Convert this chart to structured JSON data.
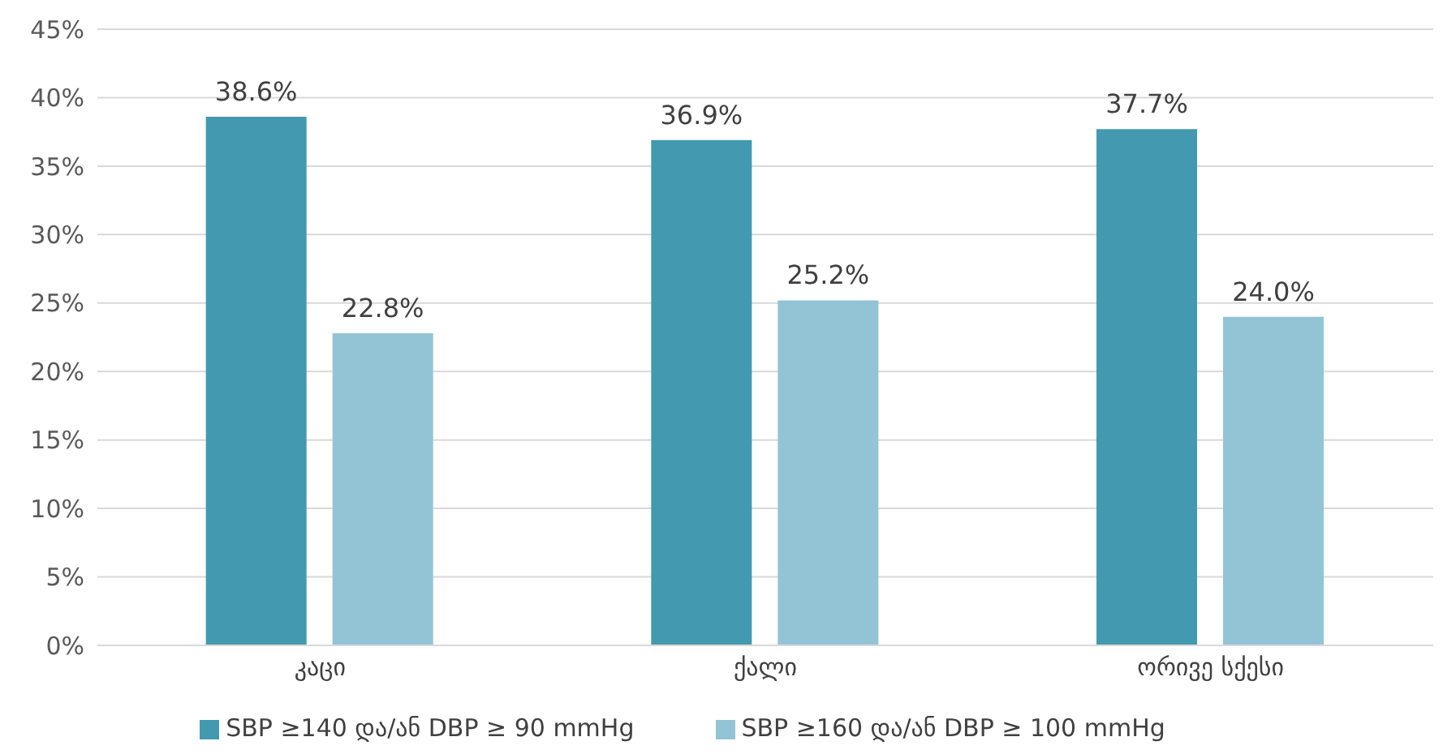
{
  "chart_data": {
    "type": "bar",
    "categories": [
      "კაცი",
      "ქალი",
      "ორივე სქესი"
    ],
    "series": [
      {
        "name": "SBP ≥140 და/ან DBP ≥ 90 mmHg",
        "color": "#4399b0",
        "values": [
          38.6,
          36.9,
          37.7
        ],
        "value_labels": [
          "38.6%",
          "36.9%",
          "37.7%"
        ]
      },
      {
        "name": "SBP ≥160 და/ან DBP ≥ 100 mmHg",
        "color": "#93c4d5",
        "values": [
          22.8,
          25.2,
          24.0
        ],
        "value_labels": [
          "22.8%",
          "25.2%",
          "24.0%"
        ]
      }
    ],
    "ylim": [
      0,
      45
    ],
    "yticks": [
      {
        "value": 0,
        "label": "0%"
      },
      {
        "value": 5,
        "label": "5%"
      },
      {
        "value": 10,
        "label": "10%"
      },
      {
        "value": 15,
        "label": "15%"
      },
      {
        "value": 20,
        "label": "20%"
      },
      {
        "value": 25,
        "label": "25%"
      },
      {
        "value": 30,
        "label": "30%"
      },
      {
        "value": 35,
        "label": "35%"
      },
      {
        "value": 40,
        "label": "40%"
      },
      {
        "value": 45,
        "label": "45%"
      }
    ],
    "grid": "y",
    "legend": "bottom"
  }
}
